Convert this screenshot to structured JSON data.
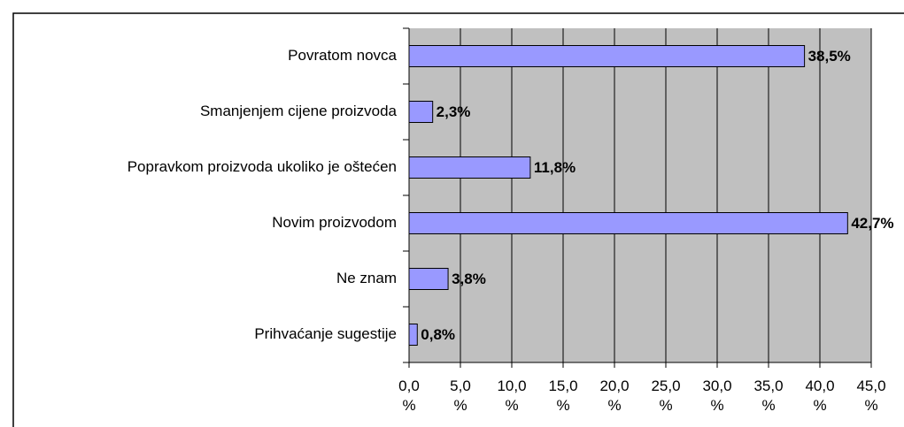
{
  "chart_data": {
    "type": "bar",
    "orientation": "horizontal",
    "categories": [
      "Povratom novca",
      "Smanjenjem cijene proizvoda",
      "Popravkom proizvoda ukoliko je oštećen",
      "Novim proizvodom",
      "Ne znam",
      "Prihvaćanje sugestije"
    ],
    "values": [
      38.5,
      2.3,
      11.8,
      42.7,
      3.8,
      0.8
    ],
    "value_labels": [
      "38,5%",
      "2,3%",
      "11,8%",
      "42,7%",
      "3,8%",
      "0,8%"
    ],
    "color": "#9999ff",
    "xlim": [
      0,
      45
    ],
    "xticks": [
      {
        "value": 0,
        "label": "0,0 %"
      },
      {
        "value": 5,
        "label": "5,0 %"
      },
      {
        "value": 10,
        "label": "10,0 %"
      },
      {
        "value": 15,
        "label": "15,0 %"
      },
      {
        "value": 20,
        "label": "20,0 %"
      },
      {
        "value": 25,
        "label": "25,0 %"
      },
      {
        "value": 30,
        "label": "30,0 %"
      },
      {
        "value": 35,
        "label": "35,0 %"
      },
      {
        "value": 40,
        "label": "40,0 %"
      },
      {
        "value": 45,
        "label": "45,0 %"
      }
    ],
    "grid": true
  }
}
